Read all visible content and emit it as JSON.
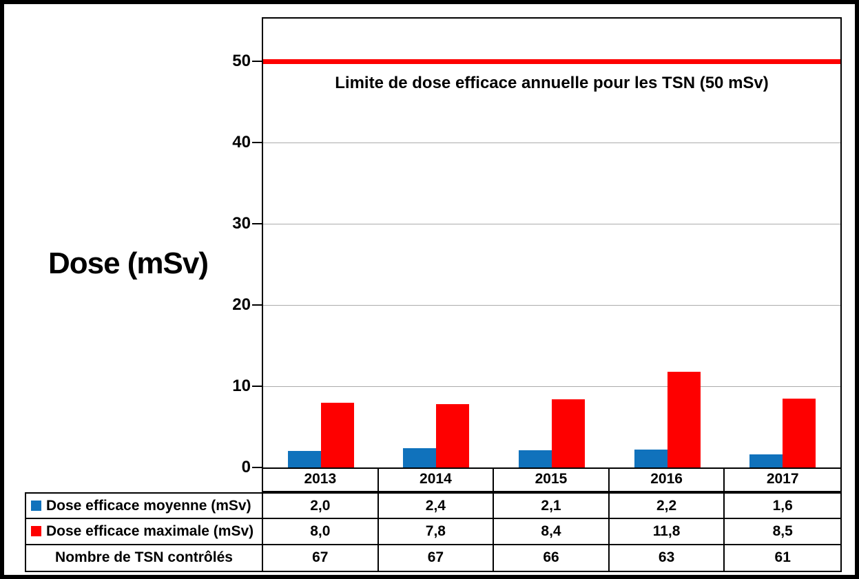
{
  "chart_data": {
    "type": "bar",
    "ylabel": "Dose (mSv)",
    "annotation": "Limite de dose efficace annuelle pour les TSN (50 mSv)",
    "categories": [
      "2013",
      "2014",
      "2015",
      "2016",
      "2017"
    ],
    "series": [
      {
        "name": "Dose efficace moyenne (mSv)",
        "color": "#1072bc",
        "values": [
          2.0,
          2.4,
          2.1,
          2.2,
          1.6
        ]
      },
      {
        "name": "Dose efficace maximale (mSv)",
        "color": "#fe0000",
        "values": [
          8.0,
          7.8,
          8.4,
          11.8,
          8.5
        ]
      }
    ],
    "limit_line": {
      "value": 50,
      "color": "#fe0000"
    },
    "y_ticks": [
      0,
      10,
      20,
      30,
      40,
      50
    ],
    "ylim": [
      0,
      55
    ],
    "grid": true,
    "legend_position": "table-left"
  },
  "table": {
    "rows": [
      {
        "label": "Dose efficace moyenne (mSv)",
        "values": [
          "2,0",
          "2,4",
          "2,1",
          "2,2",
          "1,6"
        ]
      },
      {
        "label": "Dose efficace maximale (mSv)",
        "values": [
          "8,0",
          "7,8",
          "8,4",
          "11,8",
          "8,5"
        ]
      },
      {
        "label": "Nombre de TSN contrôlés",
        "values": [
          "67",
          "67",
          "66",
          "63",
          "61"
        ]
      }
    ]
  }
}
